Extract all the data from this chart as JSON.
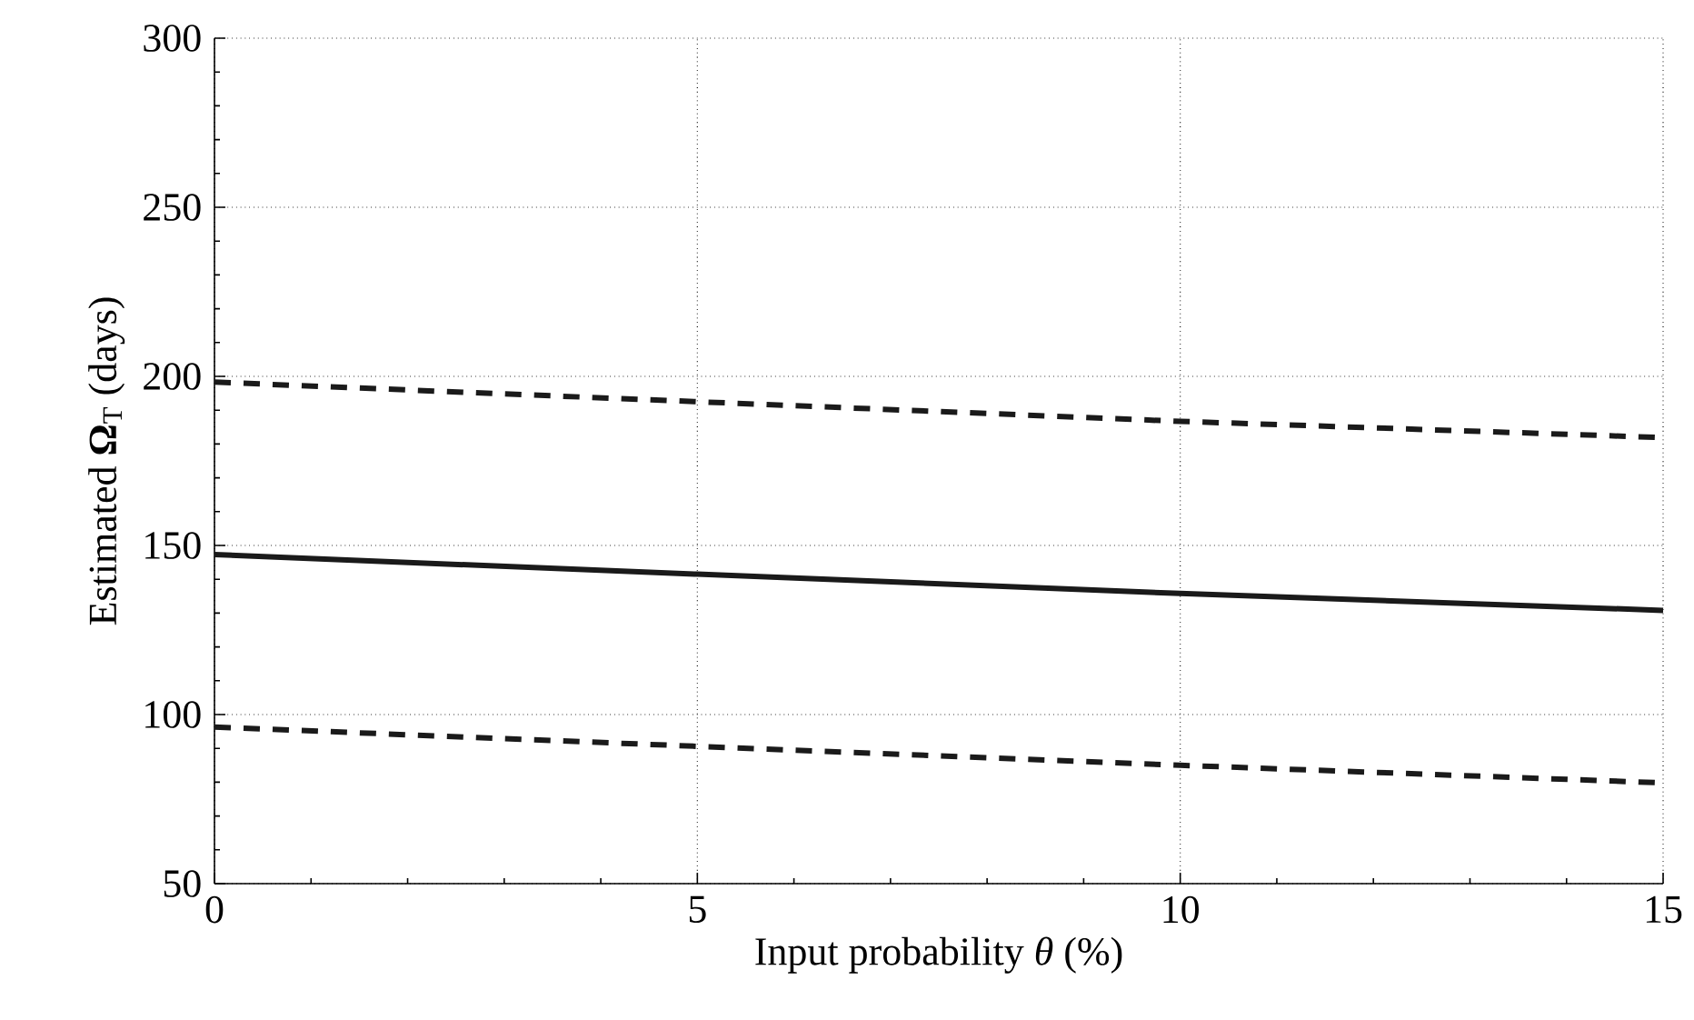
{
  "chart_data": {
    "type": "line",
    "xlabel": "Input probability *θ* (%)",
    "ylabel": "Estimated **Ω**$_{T}$ (days)",
    "x": [
      0,
      5,
      10,
      15
    ],
    "series": [
      {
        "color": "#1a1a1a",
        "line_style": "dashed",
        "values": [
          198.3,
          192.5,
          186.7,
          181.9
        ]
      },
      {
        "color": "#1a1a1a",
        "line_style": "solid",
        "values": [
          147.3,
          141.5,
          135.8,
          130.8
        ]
      },
      {
        "color": "#1a1a1a",
        "line_style": "dashed",
        "values": [
          96.3,
          90.6,
          85.0,
          79.8
        ]
      }
    ],
    "xlim": [
      0,
      15
    ],
    "ylim": [
      50,
      300
    ],
    "xticks": [
      0,
      5,
      10,
      15
    ],
    "yticks": [
      50,
      100,
      150,
      200,
      250,
      300
    ],
    "grid": true,
    "marker": "none"
  }
}
